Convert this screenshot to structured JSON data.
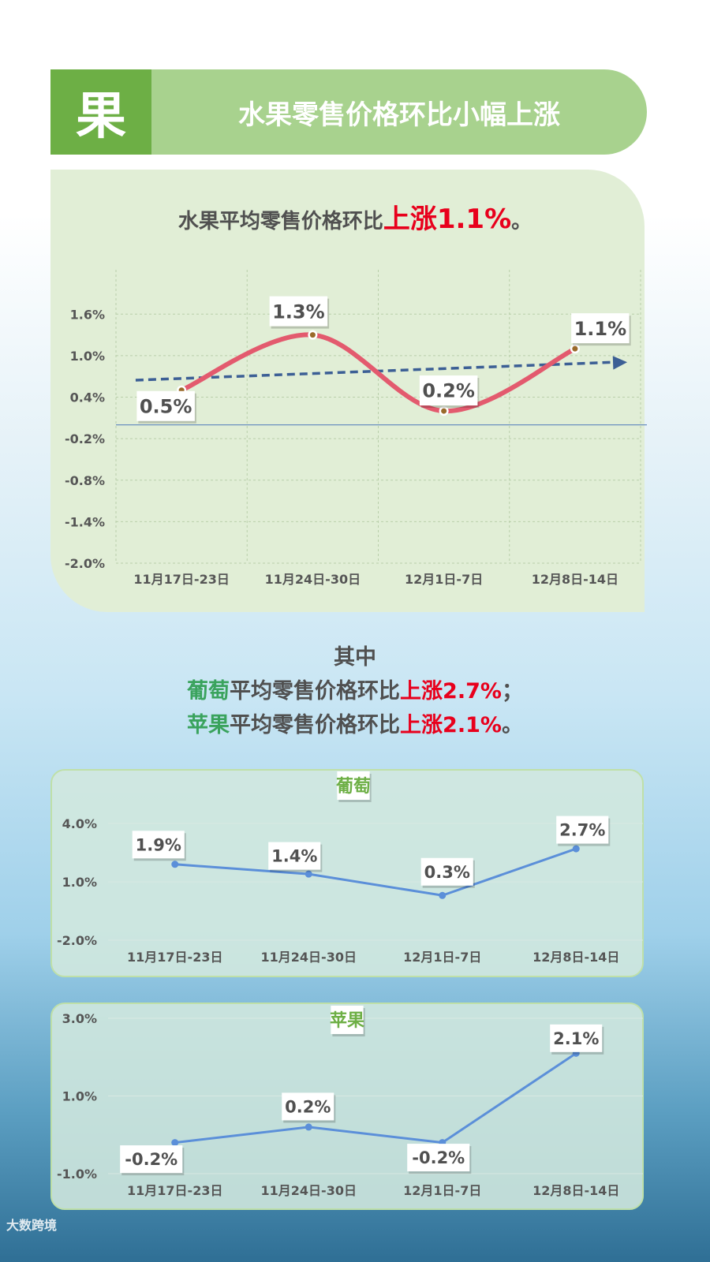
{
  "header": {
    "badge": "果",
    "title": "水果零售价格环比小幅上涨"
  },
  "main_title": {
    "prefix": "水果平均零售价格环比",
    "highlight": "上涨1.1%",
    "suffix": "。"
  },
  "summary": {
    "line1": "其中",
    "line2": {
      "fruit": "葡萄",
      "text": "平均零售价格环比",
      "change": "上涨2.7%",
      "end": "；"
    },
    "line3": {
      "fruit": "苹果",
      "text": "平均零售价格环比",
      "change": "上涨2.1%",
      "end": "。"
    }
  },
  "watermark": "大数跨境",
  "colors": {
    "accent_green": "#6daf45",
    "header_bar": "#a8d28e",
    "line_main": "#e35a6e",
    "trend": "#3c5f95",
    "line_sub": "#5b8fd9",
    "up_red": "#e8001c",
    "fruit_green": "#3aa35d"
  },
  "chart_data": [
    {
      "type": "line",
      "title": "",
      "categories": [
        "11月17日-23日",
        "11月24日-30日",
        "12月1日-7日",
        "12月8日-14日"
      ],
      "series": [
        {
          "values": [
            0.5,
            1.3,
            0.2,
            1.1
          ]
        }
      ],
      "data_labels": [
        "0.5%",
        "1.3%",
        "0.2%",
        "1.1%"
      ],
      "yticks": [
        "-2.0%",
        "-1.4%",
        "-0.8%",
        "-0.2%",
        "0.4%",
        "1.0%",
        "1.6%"
      ],
      "ylim": [
        -2.0,
        1.9
      ],
      "trendline": true,
      "grid": true
    },
    {
      "type": "line",
      "title": "葡萄",
      "categories": [
        "11月17日-23日",
        "11月24日-30日",
        "12月1日-7日",
        "12月8日-14日"
      ],
      "series": [
        {
          "values": [
            1.9,
            1.4,
            0.3,
            2.7
          ]
        }
      ],
      "data_labels": [
        "1.9%",
        "1.4%",
        "0.3%",
        "2.7%"
      ],
      "yticks": [
        "-2.0%",
        "1.0%",
        "4.0%"
      ],
      "ylim": [
        -2.0,
        4.0
      ],
      "grid": true
    },
    {
      "type": "line",
      "title": "苹果",
      "categories": [
        "11月17日-23日",
        "11月24日-30日",
        "12月1日-7日",
        "12月8日-14日"
      ],
      "series": [
        {
          "values": [
            -0.2,
            0.2,
            -0.2,
            2.1
          ]
        }
      ],
      "data_labels": [
        "-0.2%",
        "0.2%",
        "-0.2%",
        "2.1%"
      ],
      "yticks": [
        "-1.0%",
        "1.0%",
        "3.0%"
      ],
      "ylim": [
        -1.0,
        3.0
      ],
      "grid": true
    }
  ]
}
